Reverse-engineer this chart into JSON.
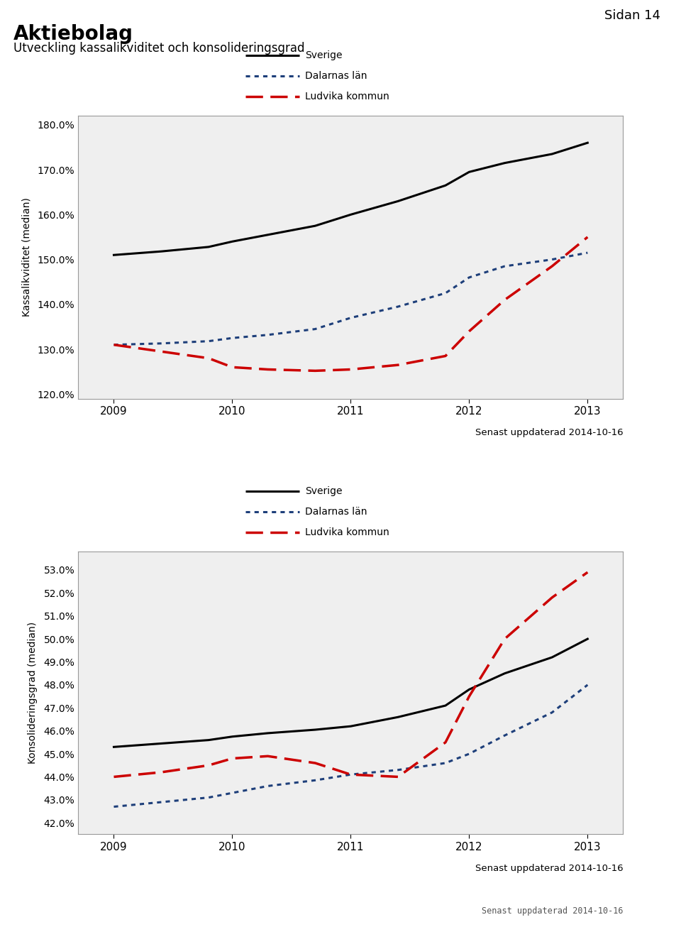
{
  "page_label": "Sidan 14",
  "title": "Aktiebolag",
  "subtitle": "Utveckling kassalikviditet och konsolideringsgrad",
  "updated_text": "Senast uppdaterad 2014-10-16",
  "legend_labels": [
    "Sverige",
    "Dalarnas län",
    "Ludvika kommun"
  ],
  "chart1": {
    "ylabel": "Kassalikviditet (median)",
    "years": [
      2009,
      2009.4,
      2009.8,
      2010,
      2010.3,
      2010.7,
      2011,
      2011.4,
      2011.8,
      2012,
      2012.3,
      2012.7,
      2013
    ],
    "sverige": [
      151.0,
      151.8,
      152.8,
      154.0,
      155.5,
      157.5,
      160.0,
      163.0,
      166.5,
      169.5,
      171.5,
      173.5,
      176.0
    ],
    "dalarna": [
      131.0,
      131.3,
      131.8,
      132.5,
      133.2,
      134.5,
      137.0,
      139.5,
      142.5,
      146.0,
      148.5,
      150.0,
      151.5
    ],
    "ludvika": [
      131.0,
      129.5,
      128.0,
      126.0,
      125.5,
      125.2,
      125.5,
      126.5,
      128.5,
      134.0,
      141.0,
      148.5,
      155.0
    ],
    "ylim": [
      119.0,
      182.0
    ],
    "yticks": [
      120.0,
      130.0,
      140.0,
      150.0,
      160.0,
      170.0,
      180.0
    ],
    "xlim": [
      2008.7,
      2013.3
    ]
  },
  "chart2": {
    "ylabel": "Konsolideringsgrad (median)",
    "years": [
      2009,
      2009.4,
      2009.8,
      2010,
      2010.3,
      2010.7,
      2011,
      2011.4,
      2011.8,
      2012,
      2012.3,
      2012.7,
      2013
    ],
    "sverige": [
      45.3,
      45.45,
      45.6,
      45.75,
      45.9,
      46.05,
      46.2,
      46.6,
      47.1,
      47.8,
      48.5,
      49.2,
      50.0
    ],
    "dalarna": [
      42.7,
      42.9,
      43.1,
      43.3,
      43.6,
      43.85,
      44.1,
      44.3,
      44.6,
      45.0,
      45.8,
      46.8,
      48.0
    ],
    "ludvika": [
      44.0,
      44.2,
      44.5,
      44.8,
      44.9,
      44.6,
      44.1,
      44.0,
      45.5,
      47.5,
      50.0,
      51.8,
      52.9
    ],
    "ylim": [
      41.5,
      53.8
    ],
    "yticks": [
      42.0,
      43.0,
      44.0,
      45.0,
      46.0,
      47.0,
      48.0,
      49.0,
      50.0,
      51.0,
      52.0,
      53.0
    ],
    "xlim": [
      2008.7,
      2013.3
    ]
  },
  "colors": {
    "sverige": "#000000",
    "dalarna": "#1E3F7A",
    "ludvika": "#CC0000"
  }
}
